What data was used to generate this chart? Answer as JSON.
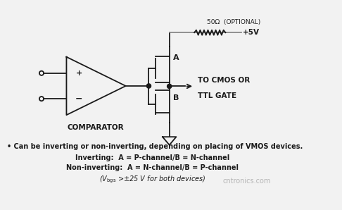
{
  "bg_color": "#f2f2f2",
  "line_color": "#1a1a1a",
  "gray_color": "#888888",
  "comparator_label": "COMPARATOR",
  "bullet_text": "• Can be inverting or non-inverting, depending on placing of VMOS devices.",
  "inverting_text": "Inverting:  A = P-channel/B = N-channel",
  "noninverting_text": "Non-inverting:  A = N-channel/B = P-channel",
  "plus5v_label": "+5V",
  "resistor_label": "50Ω  (OPTIONAL)",
  "node_a_label": "A",
  "node_b_label": "B",
  "to_cmos_label": "TO CMOS OR",
  "ttl_gate_label": "TTL GATE",
  "watermark": "cntronics.com",
  "fig_width": 4.86,
  "fig_height": 2.98,
  "dpi": 100
}
